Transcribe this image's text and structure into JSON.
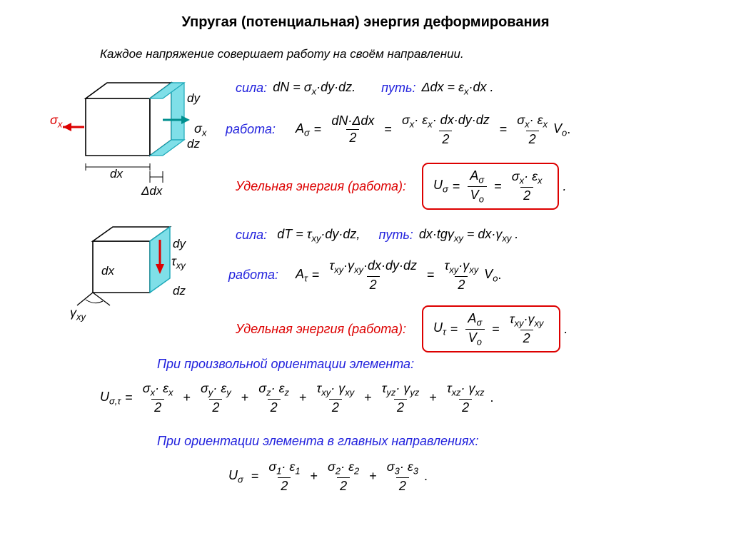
{
  "colors": {
    "blue": "#2222dd",
    "red": "#dd0000",
    "cyan_fill": "#7fdfe8",
    "cyan_stroke": "#1aa8b8",
    "black": "#000000",
    "white": "#ffffff"
  },
  "fontsizes": {
    "title": 20,
    "subtitle": 17,
    "body": 18,
    "sub": 13
  },
  "title": "Упругая (потенциальная) энергия деформирования",
  "subtitle": "Каждое напряжение совершает работу на своём направлении.",
  "labels": {
    "sila": "сила:",
    "put": "путь:",
    "rabota": "работа:",
    "udel": "Удельная энергия (работа):",
    "arb": "При произвольной ориентации элемента:",
    "princ": "При ориентации элемента в главных направлениях:"
  },
  "symbols": {
    "sigma": "σ",
    "tau": "τ",
    "eps": "ε",
    "gamma": "γ",
    "Delta": "Δ",
    "sigma_x": "σ",
    "eps_x": "ε",
    "tau_xy": "τ",
    "gamma_xy": "γ"
  },
  "diag1": {
    "dx": "dx",
    "dy": "dy",
    "dz": "dz",
    "ddx": "Δdx",
    "sigx": "σ",
    "sigx_sub": "x"
  },
  "diag2": {
    "dx": "dx",
    "dy": "dy",
    "dz": "dz",
    "tau": "τ",
    "tau_sub": "xy",
    "gamma": "γ",
    "gamma_sub": "xy"
  },
  "eq_force_sigma": {
    "lhs": "dN =",
    "rhs": "·dy·dz."
  },
  "eq_path_sigma": {
    "lhs": "Δdx =",
    "rhs": "·dx ."
  },
  "eq_work_sigma_lhs": "A",
  "eq_Vo": "V",
  "eq_force_tau": {
    "lhs": "dT =",
    "mid": "·dy·dz,",
    "rhs_l": "dx·tg",
    "rhs_r": "= dx·"
  },
  "U_sigma": "U",
  "U_tau": "U",
  "U_st": "U",
  "terms_full": [
    {
      "a": "σ",
      "as": "x",
      "b": "ε",
      "bs": "x"
    },
    {
      "a": "σ",
      "as": "y",
      "b": "ε",
      "bs": "y"
    },
    {
      "a": "σ",
      "as": "z",
      "b": "ε",
      "bs": "z"
    },
    {
      "a": "τ",
      "as": "xy",
      "b": "γ",
      "bs": "xy"
    },
    {
      "a": "τ",
      "as": "yz",
      "b": "γ",
      "bs": "yz"
    },
    {
      "a": "τ",
      "as": "xz",
      "b": "γ",
      "bs": "xz"
    }
  ],
  "terms_princ": [
    {
      "a": "σ",
      "as": "1",
      "b": "ε",
      "bs": "1"
    },
    {
      "a": "σ",
      "as": "2",
      "b": "ε",
      "bs": "2"
    },
    {
      "a": "σ",
      "as": "3",
      "b": "ε",
      "bs": "3"
    }
  ]
}
